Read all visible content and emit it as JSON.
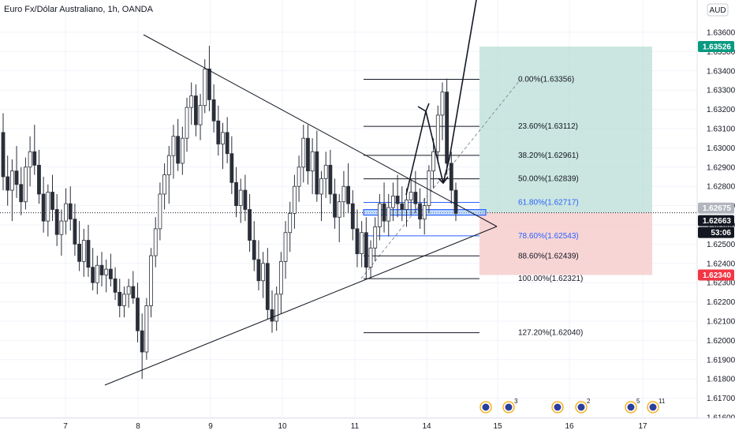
{
  "header": {
    "title": "Euro Fx/Dólar Australiano, 1h, OANDA",
    "currency_button": "AUD"
  },
  "colors": {
    "candle_body": "#2a2e39",
    "target_zone": "#b9ded6",
    "stop_zone": "#f5c7c7",
    "price_badge_green": "#089981",
    "price_badge_red": "#f23645",
    "price_badge_dark": "#131722",
    "fib_blue": "#2962ff",
    "grid": "#f0f3fa"
  },
  "chart_data": {
    "type": "candlestick",
    "title": "Euro Fx/Dólar Australiano, 1h, OANDA",
    "y_axis": {
      "ticks": [
        "1.63600",
        "1.63500",
        "1.63400",
        "1.63300",
        "1.63200",
        "1.63100",
        "1.63000",
        "1.62900",
        "1.62800",
        "1.62700",
        "1.62600",
        "1.62500",
        "1.62400",
        "1.62300",
        "1.62200",
        "1.62100",
        "1.62000",
        "1.61900",
        "1.61800",
        "1.61700",
        "1.61600"
      ],
      "range": [
        1.616,
        1.637
      ]
    },
    "x_axis": {
      "ticks": [
        "7",
        "8",
        "9",
        "10",
        "11",
        "14",
        "15",
        "16",
        "17"
      ]
    },
    "price_badges": [
      {
        "label": "1.63526",
        "kind": "green"
      },
      {
        "label": "1.62675",
        "kind": "grey"
      },
      {
        "label": "1.62663",
        "kind": "dark"
      },
      {
        "label": "53:06",
        "kind": "dark"
      },
      {
        "label": "1.62340",
        "kind": "red"
      }
    ],
    "fib_levels": [
      {
        "label": "0.00%(1.63356)",
        "price": 1.63356,
        "color": "dark"
      },
      {
        "label": "23.60%(1.63112)",
        "price": 1.63112,
        "color": "dark"
      },
      {
        "label": "38.20%(1.62961)",
        "price": 1.62961,
        "color": "dark"
      },
      {
        "label": "50.00%(1.62839)",
        "price": 1.62839,
        "color": "dark"
      },
      {
        "label": "61.80%(1.62717)",
        "price": 1.62717,
        "color": "blue"
      },
      {
        "label": "78.60%(1.62543)",
        "price": 1.62543,
        "color": "blue"
      },
      {
        "label": "88.60%(1.62439)",
        "price": 1.62439,
        "color": "dark"
      },
      {
        "label": "100.00%(1.62321)",
        "price": 1.62321,
        "color": "dark"
      },
      {
        "label": "127.20%(1.62040)",
        "price": 1.6204,
        "color": "dark"
      }
    ],
    "target_zone": {
      "top": 1.63526,
      "bottom": 1.62663
    },
    "stop_zone": {
      "top": 1.62663,
      "bottom": 1.6234
    },
    "current_price": 1.62663,
    "event_markers": [
      {
        "count": ""
      },
      {
        "count": "3"
      },
      {
        "count": ""
      },
      {
        "count": "2"
      },
      {
        "count": "5"
      },
      {
        "count": "11"
      }
    ],
    "candles": [
      [
        1.6308,
        1.6318,
        1.6278,
        1.6285
      ],
      [
        1.6285,
        1.6296,
        1.627,
        1.6278
      ],
      [
        1.6278,
        1.6294,
        1.6262,
        1.6288
      ],
      [
        1.6288,
        1.6301,
        1.6274,
        1.6281
      ],
      [
        1.6281,
        1.629,
        1.6265,
        1.6272
      ],
      [
        1.6272,
        1.6295,
        1.6268,
        1.629
      ],
      [
        1.629,
        1.6306,
        1.628,
        1.6298
      ],
      [
        1.6298,
        1.6312,
        1.6286,
        1.6291
      ],
      [
        1.6291,
        1.6299,
        1.6271,
        1.6276
      ],
      [
        1.6276,
        1.6285,
        1.6256,
        1.6262
      ],
      [
        1.6262,
        1.6281,
        1.6254,
        1.6277
      ],
      [
        1.6277,
        1.6286,
        1.6262,
        1.6268
      ],
      [
        1.6268,
        1.6276,
        1.6249,
        1.6255
      ],
      [
        1.6255,
        1.6268,
        1.6244,
        1.6262
      ],
      [
        1.6262,
        1.6279,
        1.6255,
        1.6271
      ],
      [
        1.6271,
        1.628,
        1.6257,
        1.6263
      ],
      [
        1.6263,
        1.6271,
        1.6244,
        1.625
      ],
      [
        1.625,
        1.6262,
        1.6236,
        1.6241
      ],
      [
        1.6241,
        1.6258,
        1.6233,
        1.6252
      ],
      [
        1.6252,
        1.626,
        1.6233,
        1.6238
      ],
      [
        1.6238,
        1.6248,
        1.6226,
        1.623
      ],
      [
        1.623,
        1.6244,
        1.6224,
        1.6239
      ],
      [
        1.6239,
        1.6246,
        1.6228,
        1.6234
      ],
      [
        1.6234,
        1.6242,
        1.6225,
        1.6237
      ],
      [
        1.6237,
        1.6245,
        1.6228,
        1.6232
      ],
      [
        1.6232,
        1.6238,
        1.6221,
        1.6225
      ],
      [
        1.6225,
        1.6232,
        1.6212,
        1.6218
      ],
      [
        1.6218,
        1.6228,
        1.6212,
        1.6224
      ],
      [
        1.6224,
        1.6232,
        1.6217,
        1.6228
      ],
      [
        1.6228,
        1.6236,
        1.6219,
        1.6222
      ],
      [
        1.6222,
        1.623,
        1.6199,
        1.6205
      ],
      [
        1.6205,
        1.6214,
        1.618,
        1.6194
      ],
      [
        1.6194,
        1.6222,
        1.619,
        1.6218
      ],
      [
        1.6218,
        1.6248,
        1.6212,
        1.6244
      ],
      [
        1.6244,
        1.6264,
        1.6238,
        1.6258
      ],
      [
        1.6258,
        1.6282,
        1.6252,
        1.6276
      ],
      [
        1.6276,
        1.6292,
        1.6268,
        1.6286
      ],
      [
        1.6286,
        1.6301,
        1.6271,
        1.6296
      ],
      [
        1.6296,
        1.6312,
        1.6284,
        1.6306
      ],
      [
        1.6306,
        1.6315,
        1.6288,
        1.6292
      ],
      [
        1.6292,
        1.6311,
        1.6286,
        1.6305
      ],
      [
        1.6305,
        1.6326,
        1.6298,
        1.6321
      ],
      [
        1.6321,
        1.6334,
        1.6312,
        1.6327
      ],
      [
        1.6327,
        1.6333,
        1.6306,
        1.6312
      ],
      [
        1.6312,
        1.6328,
        1.6304,
        1.6322
      ],
      [
        1.6322,
        1.6346,
        1.6318,
        1.6341
      ],
      [
        1.6341,
        1.6353,
        1.6319,
        1.6325
      ],
      [
        1.6325,
        1.6333,
        1.6308,
        1.6314
      ],
      [
        1.6314,
        1.6322,
        1.6296,
        1.6302
      ],
      [
        1.6302,
        1.6313,
        1.6289,
        1.6308
      ],
      [
        1.6308,
        1.6316,
        1.6292,
        1.6297
      ],
      [
        1.6297,
        1.6306,
        1.6276,
        1.6282
      ],
      [
        1.6282,
        1.629,
        1.6264,
        1.627
      ],
      [
        1.627,
        1.6284,
        1.6261,
        1.6278
      ],
      [
        1.6278,
        1.6286,
        1.6262,
        1.6268
      ],
      [
        1.6268,
        1.6276,
        1.6246,
        1.6252
      ],
      [
        1.6252,
        1.6262,
        1.6236,
        1.6242
      ],
      [
        1.6242,
        1.6252,
        1.6226,
        1.6231
      ],
      [
        1.6231,
        1.6246,
        1.6222,
        1.624
      ],
      [
        1.624,
        1.6248,
        1.6211,
        1.6216
      ],
      [
        1.6216,
        1.6226,
        1.6204,
        1.621
      ],
      [
        1.621,
        1.6228,
        1.6205,
        1.6224
      ],
      [
        1.6224,
        1.6246,
        1.6214,
        1.6241
      ],
      [
        1.6241,
        1.6262,
        1.6232,
        1.6256
      ],
      [
        1.6256,
        1.6272,
        1.6246,
        1.6266
      ],
      [
        1.6266,
        1.6286,
        1.6258,
        1.628
      ],
      [
        1.628,
        1.6296,
        1.6272,
        1.629
      ],
      [
        1.629,
        1.6312,
        1.6282,
        1.6305
      ],
      [
        1.6305,
        1.6312,
        1.6281,
        1.6288
      ],
      [
        1.6288,
        1.6305,
        1.6276,
        1.6298
      ],
      [
        1.6298,
        1.6309,
        1.6272,
        1.6276
      ],
      [
        1.6276,
        1.6288,
        1.6262,
        1.6284
      ],
      [
        1.6284,
        1.6298,
        1.6274,
        1.6291
      ],
      [
        1.6291,
        1.6299,
        1.6271,
        1.6276
      ],
      [
        1.6276,
        1.6284,
        1.6258,
        1.6264
      ],
      [
        1.6264,
        1.6276,
        1.6251,
        1.6272
      ],
      [
        1.6272,
        1.6288,
        1.6264,
        1.628
      ],
      [
        1.628,
        1.6292,
        1.6266,
        1.6271
      ],
      [
        1.6271,
        1.6278,
        1.6252,
        1.6258
      ],
      [
        1.6258,
        1.6268,
        1.6238,
        1.6245
      ],
      [
        1.6245,
        1.6262,
        1.6238,
        1.6256
      ],
      [
        1.6256,
        1.6264,
        1.6232,
        1.6238
      ],
      [
        1.6238,
        1.6252,
        1.6232,
        1.6248
      ],
      [
        1.6248,
        1.6264,
        1.6241,
        1.6259
      ],
      [
        1.6259,
        1.6276,
        1.6252,
        1.6271
      ],
      [
        1.6271,
        1.6282,
        1.6256,
        1.6262
      ],
      [
        1.6262,
        1.6276,
        1.6254,
        1.6269
      ],
      [
        1.6269,
        1.6282,
        1.6262,
        1.6275
      ],
      [
        1.6275,
        1.6286,
        1.6264,
        1.6271
      ],
      [
        1.6271,
        1.628,
        1.6262,
        1.6268
      ],
      [
        1.6268,
        1.6279,
        1.6259,
        1.6273
      ],
      [
        1.6273,
        1.6284,
        1.6265,
        1.6277
      ],
      [
        1.6277,
        1.6288,
        1.6266,
        1.6271
      ],
      [
        1.6271,
        1.6279,
        1.6258,
        1.6263
      ],
      [
        1.6263,
        1.6274,
        1.6255,
        1.627
      ],
      [
        1.627,
        1.6291,
        1.6266,
        1.6288
      ],
      [
        1.6288,
        1.6305,
        1.6279,
        1.6298
      ],
      [
        1.6298,
        1.6322,
        1.6292,
        1.6317
      ],
      [
        1.6317,
        1.6334,
        1.6304,
        1.6329
      ],
      [
        1.6329,
        1.6336,
        1.6286,
        1.6292
      ],
      [
        1.6292,
        1.6298,
        1.6271,
        1.6278
      ],
      [
        1.6278,
        1.6282,
        1.6262,
        1.6266
      ]
    ]
  }
}
